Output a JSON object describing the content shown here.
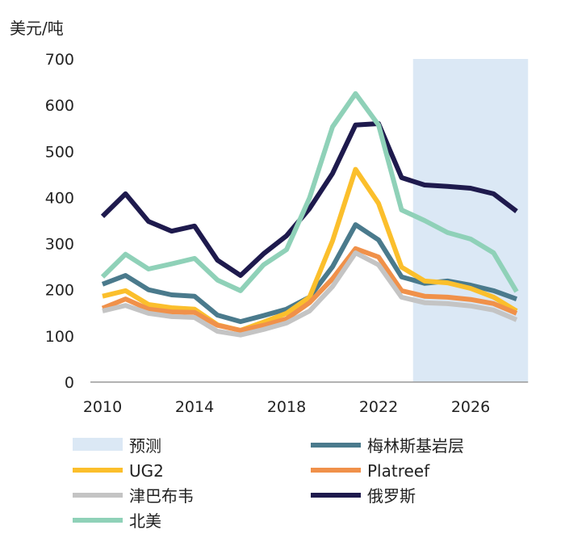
{
  "chart_data": {
    "type": "line",
    "ylabel": "美元/吨",
    "ylim": [
      0,
      700
    ],
    "xlim": [
      2010,
      2028.5
    ],
    "yticks": [
      0,
      100,
      200,
      300,
      400,
      500,
      600,
      700
    ],
    "xticks": [
      2010,
      2014,
      2018,
      2022,
      2026
    ],
    "forecast": {
      "name": "预测",
      "from": 2023.5,
      "to": 2028.5,
      "color": "#dbe8f5"
    },
    "x": [
      2010,
      2011,
      2012,
      2013,
      2014,
      2015,
      2016,
      2017,
      2018,
      2019,
      2020,
      2021,
      2022,
      2023,
      2024,
      2025,
      2026,
      2027,
      2028
    ],
    "series": [
      {
        "name": "梅林斯基岩层",
        "color": "#4a7a8c",
        "values": [
          212,
          231,
          200,
          189,
          186,
          145,
          131,
          144,
          158,
          184,
          250,
          341,
          308,
          228,
          214,
          219,
          210,
          198,
          180
        ]
      },
      {
        "name": "UG2",
        "color": "#fbbf2c",
        "values": [
          186,
          198,
          168,
          161,
          158,
          124,
          112,
          130,
          149,
          184,
          306,
          461,
          387,
          249,
          219,
          215,
          203,
          184,
          154
        ]
      },
      {
        "name": "Platreef",
        "color": "#f0914a",
        "values": [
          160,
          180,
          158,
          152,
          151,
          123,
          112,
          123,
          137,
          172,
          224,
          289,
          271,
          198,
          186,
          184,
          179,
          170,
          149
        ]
      },
      {
        "name": "津巴布韦",
        "color": "#c4c4c4",
        "values": [
          154,
          166,
          149,
          142,
          140,
          110,
          102,
          114,
          128,
          154,
          207,
          280,
          254,
          184,
          172,
          170,
          165,
          156,
          135
        ]
      },
      {
        "name": "俄罗斯",
        "color": "#1e1a4d",
        "values": [
          359,
          408,
          348,
          327,
          338,
          264,
          231,
          278,
          317,
          376,
          452,
          557,
          560,
          443,
          427,
          424,
          420,
          408,
          370
        ]
      },
      {
        "name": "北美",
        "color": "#8fd1b8",
        "values": [
          228,
          277,
          245,
          256,
          268,
          221,
          198,
          254,
          287,
          399,
          553,
          625,
          557,
          373,
          350,
          324,
          310,
          280,
          196
        ]
      }
    ],
    "legend": "bottom",
    "grid": false
  }
}
